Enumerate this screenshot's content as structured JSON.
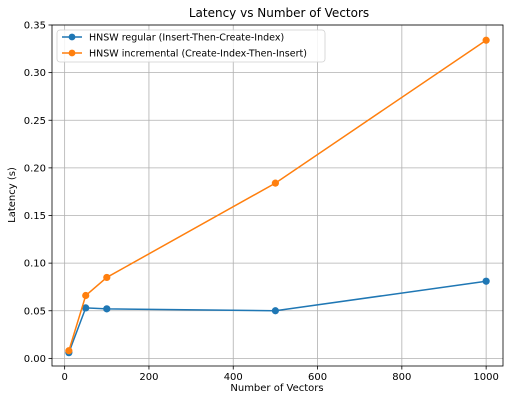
{
  "chart_data": {
    "type": "line",
    "title": "Latency vs Number of Vectors",
    "xlabel": "Number of Vectors",
    "ylabel": "Latency (s)",
    "xlim": [
      -30,
      1040
    ],
    "ylim": [
      -0.008,
      0.35
    ],
    "xticks": [
      0,
      200,
      400,
      600,
      800,
      1000
    ],
    "yticks": [
      0.0,
      0.05,
      0.1,
      0.15,
      0.2,
      0.25,
      0.3,
      0.35
    ],
    "x_tick_labels": [
      "0",
      "200",
      "400",
      "600",
      "800",
      "1000"
    ],
    "y_tick_labels": [
      "0.00",
      "0.05",
      "0.10",
      "0.15",
      "0.20",
      "0.25",
      "0.30",
      "0.35"
    ],
    "grid": true,
    "legend_position": "top-left",
    "x": [
      10,
      50,
      100,
      500,
      1000
    ],
    "series": [
      {
        "name": "HNSW regular (Insert-Then-Create-Index)",
        "color": "#1f77b4",
        "values": [
          0.006,
          0.053,
          0.052,
          0.05,
          0.081
        ]
      },
      {
        "name": "HNSW incremental (Create-Index-Then-Insert)",
        "color": "#ff7f0e",
        "values": [
          0.008,
          0.066,
          0.085,
          0.184,
          0.334
        ]
      }
    ]
  }
}
